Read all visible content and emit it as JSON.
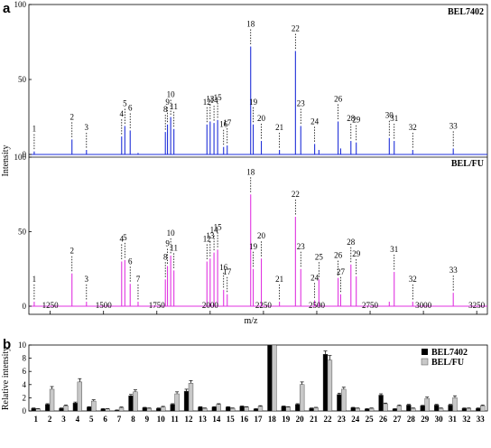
{
  "chart_data": [
    {
      "type": "line",
      "panel_label": "a",
      "xlabel": "m/z",
      "ylabel": "Intensity",
      "xlim": [
        1150,
        3300
      ],
      "xticks": [
        "1250",
        "1500",
        "1750",
        "2000",
        "2250",
        "2500",
        "2750",
        "3000",
        "3250"
      ],
      "yticks": [
        "0",
        "50",
        "100"
      ],
      "subplots": [
        {
          "name": "BEL7402",
          "color": "#1f2fd8",
          "ylim": [
            0,
            100
          ],
          "peaks": [
            {
              "label": "1",
              "mz": 1175,
              "y": 2
            },
            {
              "label": "2",
              "mz": 1352,
              "y": 10
            },
            {
              "label": "3",
              "mz": 1420,
              "y": 3
            },
            {
              "label": "4",
              "mz": 1585,
              "y": 12
            },
            {
              "label": "5",
              "mz": 1600,
              "y": 19
            },
            {
              "label": "6",
              "mz": 1625,
              "y": 16
            },
            {
              "label": "7",
              "mz": 1662,
              "y": 1
            },
            {
              "label": "8",
              "mz": 1790,
              "y": 15
            },
            {
              "label": "9",
              "mz": 1800,
              "y": 20
            },
            {
              "label": "10",
              "mz": 1815,
              "y": 25
            },
            {
              "label": "11",
              "mz": 1830,
              "y": 17
            },
            {
              "label": "12",
              "mz": 1985,
              "y": 20
            },
            {
              "label": "13",
              "mz": 2000,
              "y": 22
            },
            {
              "label": "14",
              "mz": 2018,
              "y": 21
            },
            {
              "label": "15",
              "mz": 2035,
              "y": 23
            },
            {
              "label": "16",
              "mz": 2063,
              "y": 5
            },
            {
              "label": "17",
              "mz": 2080,
              "y": 6
            },
            {
              "label": "18",
              "mz": 2190,
              "y": 72
            },
            {
              "label": "19",
              "mz": 2202,
              "y": 20
            },
            {
              "label": "20",
              "mz": 2240,
              "y": 9
            },
            {
              "label": "21",
              "mz": 2325,
              "y": 3
            },
            {
              "label": "22",
              "mz": 2400,
              "y": 69
            },
            {
              "label": "23",
              "mz": 2425,
              "y": 19
            },
            {
              "label": "24",
              "mz": 2490,
              "y": 7
            },
            {
              "label": "25",
              "mz": 2510,
              "y": 3
            },
            {
              "label": "26",
              "mz": 2600,
              "y": 22
            },
            {
              "label": "27",
              "mz": 2612,
              "y": 4
            },
            {
              "label": "28",
              "mz": 2660,
              "y": 9
            },
            {
              "label": "29",
              "mz": 2685,
              "y": 8
            },
            {
              "label": "30",
              "mz": 2840,
              "y": 11
            },
            {
              "label": "31",
              "mz": 2863,
              "y": 9
            },
            {
              "label": "32",
              "mz": 2950,
              "y": 3
            },
            {
              "label": "33",
              "mz": 3140,
              "y": 4
            }
          ],
          "peak_labels": [
            "1",
            "2",
            "3",
            "4",
            "5",
            "6",
            "8",
            "9",
            "10",
            "11",
            "12",
            "13",
            "14",
            "15",
            "16",
            "17",
            "18",
            "19",
            "20",
            "21",
            "22",
            "23",
            "24",
            "26",
            "28",
            "29",
            "30",
            "31",
            "32",
            "33"
          ]
        },
        {
          "name": "BEL/FU",
          "color": "#e033e0",
          "ylim": [
            0,
            100
          ],
          "peaks": [
            {
              "label": "1",
              "mz": 1175,
              "y": 3
            },
            {
              "label": "2",
              "mz": 1352,
              "y": 22
            },
            {
              "label": "3",
              "mz": 1420,
              "y": 3
            },
            {
              "label": "4",
              "mz": 1585,
              "y": 30
            },
            {
              "label": "5",
              "mz": 1600,
              "y": 31
            },
            {
              "label": "6",
              "mz": 1625,
              "y": 15
            },
            {
              "label": "7",
              "mz": 1662,
              "y": 3
            },
            {
              "label": "8",
              "mz": 1790,
              "y": 18
            },
            {
              "label": "9",
              "mz": 1800,
              "y": 27
            },
            {
              "label": "10",
              "mz": 1815,
              "y": 34
            },
            {
              "label": "11",
              "mz": 1830,
              "y": 24
            },
            {
              "label": "12",
              "mz": 1985,
              "y": 30
            },
            {
              "label": "13",
              "mz": 2000,
              "y": 32
            },
            {
              "label": "14",
              "mz": 2018,
              "y": 36
            },
            {
              "label": "15",
              "mz": 2035,
              "y": 38
            },
            {
              "label": "16",
              "mz": 2063,
              "y": 11
            },
            {
              "label": "17",
              "mz": 2080,
              "y": 8
            },
            {
              "label": "18",
              "mz": 2190,
              "y": 75
            },
            {
              "label": "19",
              "mz": 2202,
              "y": 25
            },
            {
              "label": "20",
              "mz": 2240,
              "y": 32
            },
            {
              "label": "21",
              "mz": 2325,
              "y": 3
            },
            {
              "label": "22",
              "mz": 2400,
              "y": 60
            },
            {
              "label": "23",
              "mz": 2425,
              "y": 25
            },
            {
              "label": "24",
              "mz": 2490,
              "y": 4
            },
            {
              "label": "25",
              "mz": 2510,
              "y": 18
            },
            {
              "label": "26",
              "mz": 2600,
              "y": 19
            },
            {
              "label": "27",
              "mz": 2612,
              "y": 8
            },
            {
              "label": "28",
              "mz": 2660,
              "y": 28
            },
            {
              "label": "29",
              "mz": 2685,
              "y": 20
            },
            {
              "label": "30",
              "mz": 2840,
              "y": 3
            },
            {
              "label": "31",
              "mz": 2863,
              "y": 23
            },
            {
              "label": "32",
              "mz": 2950,
              "y": 3
            },
            {
              "label": "33",
              "mz": 3140,
              "y": 9
            }
          ],
          "peak_labels": [
            "1",
            "2",
            "3",
            "4",
            "5",
            "6",
            "7",
            "8",
            "9",
            "10",
            "11",
            "12",
            "13",
            "14",
            "15",
            "16",
            "17",
            "18",
            "19",
            "20",
            "21",
            "22",
            "23",
            "24",
            "25",
            "26",
            "27",
            "28",
            "29",
            "31",
            "32",
            "33"
          ]
        }
      ]
    },
    {
      "type": "bar",
      "panel_label": "b",
      "ylabel": "Relative intensity",
      "ylim": [
        0,
        10
      ],
      "yticks": [
        "0",
        "2",
        "4",
        "6",
        "8",
        "10"
      ],
      "categories": [
        "1",
        "2",
        "3",
        "4",
        "5",
        "6",
        "7",
        "8",
        "9",
        "10",
        "11",
        "12",
        "13",
        "14",
        "15",
        "16",
        "17",
        "18",
        "19",
        "20",
        "21",
        "22",
        "23",
        "24",
        "25",
        "26",
        "27",
        "28",
        "29",
        "30",
        "31",
        "32",
        "33"
      ],
      "series": [
        {
          "name": "BEL7402",
          "color": "#000000",
          "values": [
            0.4,
            1.0,
            0.4,
            1.2,
            0.6,
            0.3,
            0.1,
            2.3,
            0.5,
            0.4,
            1.0,
            3.0,
            0.6,
            0.6,
            0.6,
            0.7,
            0.3,
            10.0,
            0.7,
            1.0,
            0.4,
            8.6,
            2.5,
            0.5,
            0.3,
            2.4,
            0.3,
            0.9,
            0.8,
            0.9,
            0.9,
            0.4,
            0.4
          ],
          "errors": [
            0.05,
            0.1,
            0.05,
            0.15,
            0.05,
            0.05,
            0.05,
            0.2,
            0.05,
            0.05,
            0.1,
            0.3,
            0.05,
            0.05,
            0.05,
            0.05,
            0.05,
            0.0,
            0.05,
            0.1,
            0.05,
            0.5,
            0.2,
            0.05,
            0.05,
            0.2,
            0.05,
            0.1,
            0.05,
            0.1,
            0.1,
            0.05,
            0.05
          ]
        },
        {
          "name": "BEL/FU",
          "color": "#c8c8c8",
          "values": [
            0.3,
            3.3,
            0.8,
            4.4,
            1.5,
            0.3,
            0.5,
            2.9,
            0.4,
            0.6,
            2.6,
            4.2,
            0.4,
            1.0,
            0.4,
            0.6,
            0.7,
            10.0,
            0.6,
            4.0,
            0.5,
            7.7,
            3.3,
            0.4,
            0.4,
            1.1,
            0.8,
            0.4,
            1.9,
            0.4,
            2.0,
            0.4,
            0.8
          ],
          "errors": [
            0.05,
            0.4,
            0.1,
            0.5,
            0.2,
            0.05,
            0.1,
            0.3,
            0.05,
            0.1,
            0.3,
            0.4,
            0.05,
            0.1,
            0.05,
            0.05,
            0.1,
            0.0,
            0.05,
            0.4,
            0.05,
            0.7,
            0.3,
            0.05,
            0.05,
            0.1,
            0.1,
            0.05,
            0.2,
            0.05,
            0.3,
            0.05,
            0.1
          ]
        }
      ],
      "legend_position": "top-right"
    }
  ]
}
